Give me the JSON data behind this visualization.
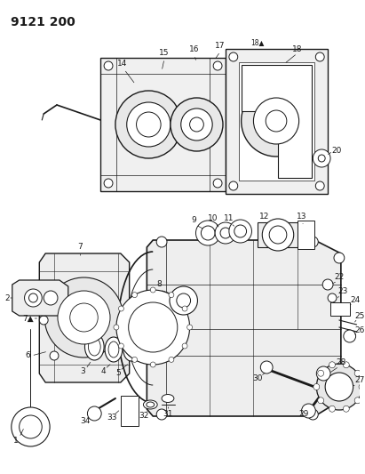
{
  "title": "9121 200",
  "background_color": "#ffffff",
  "line_color": "#1a1a1a",
  "fig_width": 4.11,
  "fig_height": 5.33,
  "dpi": 100,
  "label_fontsize": 6.5
}
